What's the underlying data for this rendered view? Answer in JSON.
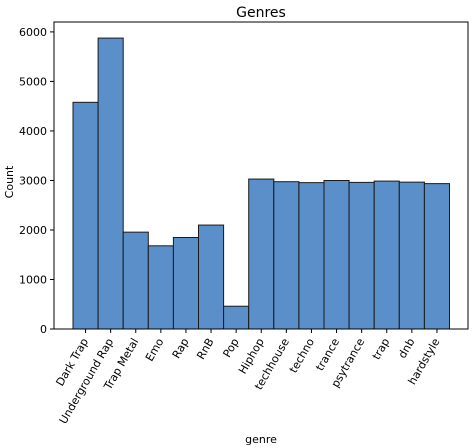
{
  "chart_data": {
    "type": "bar",
    "title": "Genres",
    "xlabel": "genre",
    "ylabel": "Count",
    "categories": [
      "Dark Trap",
      "Underground Rap",
      "Trap Metal",
      "Emo",
      "Rap",
      "RnB",
      "Pop",
      "Hiphop",
      "techhouse",
      "techno",
      "trance",
      "psytrance",
      "trap",
      "dnb",
      "hardstyle"
    ],
    "values": [
      4578,
      5875,
      1956,
      1680,
      1848,
      2099,
      460,
      3028,
      2975,
      2956,
      2999,
      2961,
      2987,
      2966,
      2936
    ],
    "ylim": [
      0,
      6200
    ],
    "yticks": [
      "0",
      "1000",
      "2000",
      "3000",
      "4000",
      "5000",
      "6000"
    ],
    "ytick_values": [
      0,
      1000,
      2000,
      3000,
      4000,
      5000,
      6000
    ],
    "bar_color": "#5b8fc9",
    "edge_color": "#1a1a1a",
    "grid": false
  }
}
